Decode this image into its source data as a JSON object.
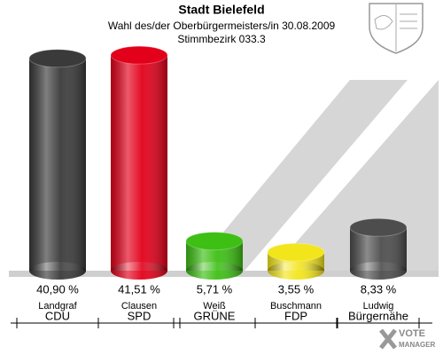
{
  "chart_data": {
    "type": "bar",
    "title": "Stadt Bielefeld",
    "subtitle": [
      "Wahl des/der Oberbürgermeisters/in 30.08.2009",
      "Stimmbezirk 033.3"
    ],
    "categories": [
      "Landgraf",
      "Clausen",
      "Weiß",
      "Buschmann",
      "Ludwig"
    ],
    "parties": [
      "CDU",
      "SPD",
      "GRÜNE",
      "FDP",
      "Bürgernähe"
    ],
    "values": [
      40.9,
      41.51,
      5.71,
      3.55,
      8.33
    ],
    "value_labels": [
      "40,90 %",
      "41,51 %",
      "5,71 %",
      "3,55 %",
      "8,33 %"
    ],
    "colors": [
      "#3a3a3a",
      "#e2001a",
      "#3dbf14",
      "#f3e51c",
      "#4d4d4d"
    ],
    "logo": [
      "VOTE",
      "MANAGER"
    ]
  }
}
